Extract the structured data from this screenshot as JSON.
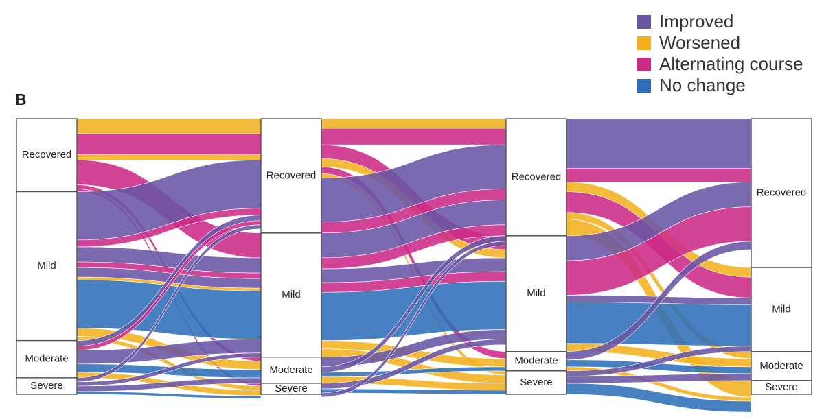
{
  "panel_label": "B",
  "colors": {
    "Improved": "#6a55a5",
    "Worsened": "#f2b01e",
    "Alternating course": "#cc2b88",
    "No change": "#2e70b8"
  },
  "legend": [
    "Improved",
    "Worsened",
    "Alternating course",
    "No change"
  ],
  "chart_data": {
    "type": "sankey",
    "categories": [
      "Recovered",
      "Mild",
      "Moderate",
      "Severe"
    ],
    "stages": [
      {
        "nodes": [
          {
            "label": "Recovered",
            "value": 106
          },
          {
            "label": "Mild",
            "value": 216
          },
          {
            "label": "Moderate",
            "value": 54
          },
          {
            "label": "Severe",
            "value": 24
          }
        ]
      },
      {
        "nodes": [
          {
            "label": "Recovered",
            "value": 166
          },
          {
            "label": "Mild",
            "value": 180
          },
          {
            "label": "Moderate",
            "value": 38
          },
          {
            "label": "Severe",
            "value": 16
          }
        ]
      },
      {
        "nodes": [
          {
            "label": "Recovered",
            "value": 170
          },
          {
            "label": "Mild",
            "value": 168
          },
          {
            "label": "Moderate",
            "value": 28
          },
          {
            "label": "Severe",
            "value": 34
          }
        ]
      },
      {
        "nodes": [
          {
            "label": "Recovered",
            "value": 216
          },
          {
            "label": "Mild",
            "value": 122
          },
          {
            "label": "Moderate",
            "value": 42
          },
          {
            "label": "Severe",
            "value": 20
          }
        ]
      }
    ],
    "flows": [
      [
        {
          "from": "Recovered",
          "to": "Recovered",
          "course": "Worsened",
          "value": 22
        },
        {
          "from": "Recovered",
          "to": "Recovered",
          "course": "Alternating course",
          "value": 30
        },
        {
          "from": "Recovered",
          "to": "Recovered",
          "course": "Worsened",
          "value": 8
        },
        {
          "from": "Recovered",
          "to": "Mild",
          "course": "Alternating course",
          "value": 36
        },
        {
          "from": "Recovered",
          "to": "Moderate",
          "course": "Alternating course",
          "value": 6
        },
        {
          "from": "Recovered",
          "to": "Severe",
          "course": "Alternating course",
          "value": 4
        },
        {
          "from": "Mild",
          "to": "Recovered",
          "course": "Improved",
          "value": 70
        },
        {
          "from": "Mild",
          "to": "Recovered",
          "course": "Alternating course",
          "value": 10
        },
        {
          "from": "Mild",
          "to": "Mild",
          "course": "Improved",
          "value": 22
        },
        {
          "from": "Mild",
          "to": "Mild",
          "course": "Alternating course",
          "value": 8
        },
        {
          "from": "Mild",
          "to": "Mild",
          "course": "Improved",
          "value": 14
        },
        {
          "from": "Mild",
          "to": "Mild",
          "course": "Worsened",
          "value": 4
        },
        {
          "from": "Mild",
          "to": "Mild",
          "course": "No change",
          "value": 70
        },
        {
          "from": "Mild",
          "to": "Moderate",
          "course": "Worsened",
          "value": 12
        },
        {
          "from": "Mild",
          "to": "Severe",
          "course": "Worsened",
          "value": 6
        },
        {
          "from": "Moderate",
          "to": "Recovered",
          "course": "Improved",
          "value": 8
        },
        {
          "from": "Moderate",
          "to": "Recovered",
          "course": "Alternating course",
          "value": 6
        },
        {
          "from": "Moderate",
          "to": "Mild",
          "course": "Improved",
          "value": 20
        },
        {
          "from": "Moderate",
          "to": "Moderate",
          "course": "No change",
          "value": 12
        },
        {
          "from": "Moderate",
          "to": "Severe",
          "course": "Worsened",
          "value": 8
        },
        {
          "from": "Severe",
          "to": "Recovered",
          "course": "Improved",
          "value": 6
        },
        {
          "from": "Severe",
          "to": "Mild",
          "course": "Improved",
          "value": 6
        },
        {
          "from": "Severe",
          "to": "Moderate",
          "course": "Improved",
          "value": 8
        },
        {
          "from": "Severe",
          "to": "Severe",
          "course": "No change",
          "value": 4
        }
      ],
      [
        {
          "from": "Recovered",
          "to": "Recovered",
          "course": "Worsened",
          "value": 14
        },
        {
          "from": "Recovered",
          "to": "Recovered",
          "course": "Alternating course",
          "value": 24
        },
        {
          "from": "Recovered",
          "to": "Mild",
          "course": "Alternating course",
          "value": 20
        },
        {
          "from": "Recovered",
          "to": "Mild",
          "course": "Worsened",
          "value": 12
        },
        {
          "from": "Recovered",
          "to": "Moderate",
          "course": "Alternating course",
          "value": 10
        },
        {
          "from": "Recovered",
          "to": "Severe",
          "course": "Worsened",
          "value": 6
        },
        {
          "from": "Recovered",
          "to": "Recovered",
          "course": "Improved",
          "value": 64
        },
        {
          "from": "Recovered",
          "to": "Recovered",
          "course": "Alternating course",
          "value": 16
        },
        {
          "from": "Mild",
          "to": "Recovered",
          "course": "Improved",
          "value": 36
        },
        {
          "from": "Mild",
          "to": "Recovered",
          "course": "Alternating course",
          "value": 16
        },
        {
          "from": "Mild",
          "to": "Mild",
          "course": "Improved",
          "value": 20
        },
        {
          "from": "Mild",
          "to": "Mild",
          "course": "Alternating course",
          "value": 14
        },
        {
          "from": "Mild",
          "to": "Mild",
          "course": "No change",
          "value": 70
        },
        {
          "from": "Mild",
          "to": "Moderate",
          "course": "Worsened",
          "value": 12
        },
        {
          "from": "Mild",
          "to": "Severe",
          "course": "Worsened",
          "value": 12
        },
        {
          "from": "Moderate",
          "to": "Mild",
          "course": "Improved",
          "value": 14
        },
        {
          "from": "Moderate",
          "to": "Recovered",
          "course": "Improved",
          "value": 8
        },
        {
          "from": "Moderate",
          "to": "Moderate",
          "course": "No change",
          "value": 6
        },
        {
          "from": "Moderate",
          "to": "Severe",
          "course": "Worsened",
          "value": 10
        },
        {
          "from": "Severe",
          "to": "Mild",
          "course": "Improved",
          "value": 8
        },
        {
          "from": "Severe",
          "to": "Severe",
          "course": "No change",
          "value": 6
        },
        {
          "from": "Severe",
          "to": "Recovered",
          "course": "Improved",
          "value": 6
        }
      ],
      [
        {
          "from": "Recovered",
          "to": "Recovered",
          "course": "Improved",
          "value": 72
        },
        {
          "from": "Recovered",
          "to": "Recovered",
          "course": "Alternating course",
          "value": 20
        },
        {
          "from": "Recovered",
          "to": "Mild",
          "course": "Worsened",
          "value": 14
        },
        {
          "from": "Recovered",
          "to": "Mild",
          "course": "Alternating course",
          "value": 30
        },
        {
          "from": "Recovered",
          "to": "Moderate",
          "course": "Worsened",
          "value": 10
        },
        {
          "from": "Recovered",
          "to": "Severe",
          "course": "Worsened",
          "value": 24
        },
        {
          "from": "Mild",
          "to": "Recovered",
          "course": "Improved",
          "value": 36
        },
        {
          "from": "Mild",
          "to": "Recovered",
          "course": "Alternating course",
          "value": 50
        },
        {
          "from": "Mild",
          "to": "Mild",
          "course": "Improved",
          "value": 10
        },
        {
          "from": "Mild",
          "to": "Mild",
          "course": "No change",
          "value": 60
        },
        {
          "from": "Mild",
          "to": "Moderate",
          "course": "Worsened",
          "value": 12
        },
        {
          "from": "Moderate",
          "to": "Recovered",
          "course": "Improved",
          "value": 12
        },
        {
          "from": "Moderate",
          "to": "Moderate",
          "course": "No change",
          "value": 10
        },
        {
          "from": "Moderate",
          "to": "Severe",
          "course": "Worsened",
          "value": 6
        },
        {
          "from": "Severe",
          "to": "Mild",
          "course": "Improved",
          "value": 8
        },
        {
          "from": "Severe",
          "to": "Moderate",
          "course": "Improved",
          "value": 10
        },
        {
          "from": "Severe",
          "to": "Severe",
          "course": "No change",
          "value": 16
        }
      ]
    ]
  }
}
